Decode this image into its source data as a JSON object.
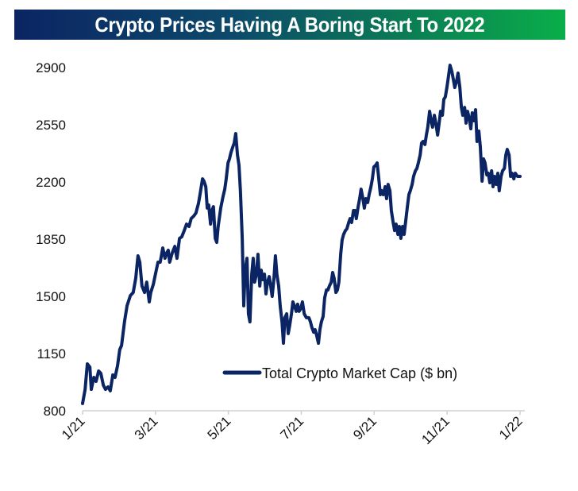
{
  "chart_data": {
    "type": "line",
    "title": "Crypto Prices Having A Boring Start To 2022",
    "xlabel": "",
    "ylabel": "",
    "ylim": [
      800,
      2900
    ],
    "yticks": [
      800,
      1150,
      1500,
      1850,
      2200,
      2550,
      2900
    ],
    "ytick_labels": [
      "800",
      "1150",
      "1500",
      "1850",
      "2200",
      "2550",
      "2900"
    ],
    "xlim_months": [
      0,
      12
    ],
    "xticks_months": [
      0,
      2,
      4,
      6,
      8,
      10,
      12
    ],
    "xtick_labels": [
      "1/21",
      "3/21",
      "5/21",
      "7/21",
      "9/21",
      "11/21",
      "1/22"
    ],
    "x_unit": "months since 1/21",
    "grid": false,
    "legend": {
      "placement": "bottom-center",
      "entries": [
        "Total Crypto Market Cap ($ bn)"
      ]
    },
    "series": [
      {
        "name": "Total Crypto Market Cap ($ bn)",
        "color": "#0b2463",
        "x": [
          0,
          0.07,
          0.13,
          0.2,
          0.24,
          0.31,
          0.37,
          0.44,
          0.5,
          0.57,
          0.63,
          0.7,
          0.76,
          0.83,
          0.89,
          0.96,
          1.02,
          1.07,
          1.15,
          1.22,
          1.31,
          1.39,
          1.46,
          1.52,
          1.57,
          1.63,
          1.7,
          1.76,
          1.83,
          1.87,
          1.94,
          2.0,
          2.07,
          2.13,
          2.2,
          2.26,
          2.31,
          2.35,
          2.39,
          2.46,
          2.53,
          2.59,
          2.66,
          2.72,
          2.79,
          2.85,
          2.92,
          2.98,
          3.05,
          3.11,
          3.18,
          3.22,
          3.29,
          3.33,
          3.38,
          3.42,
          3.46,
          3.51,
          3.55,
          3.59,
          3.64,
          3.68,
          3.72,
          3.79,
          3.85,
          3.9,
          3.94,
          3.99,
          4.03,
          4.07,
          4.12,
          4.16,
          4.2,
          4.25,
          4.29,
          4.33,
          4.38,
          4.42,
          4.46,
          4.51,
          4.55,
          4.59,
          4.64,
          4.68,
          4.72,
          4.77,
          4.81,
          4.86,
          4.9,
          4.94,
          4.99,
          5.03,
          5.07,
          5.12,
          5.16,
          5.2,
          5.25,
          5.29,
          5.33,
          5.38,
          5.42,
          5.47,
          5.51,
          5.55,
          5.6,
          5.64,
          5.68,
          5.73,
          5.77,
          5.81,
          5.86,
          5.9,
          5.94,
          5.99,
          6.03,
          6.08,
          6.14,
          6.21,
          6.25,
          6.29,
          6.34,
          6.38,
          6.42,
          6.47,
          6.51,
          6.55,
          6.6,
          6.64,
          6.69,
          6.73,
          6.77,
          6.82,
          6.86,
          6.9,
          6.95,
          6.99,
          7.03,
          7.08,
          7.12,
          7.16,
          7.21,
          7.25,
          7.3,
          7.34,
          7.38,
          7.43,
          7.47,
          7.51,
          7.56,
          7.6,
          7.64,
          7.69,
          7.73,
          7.77,
          7.82,
          7.86,
          7.91,
          7.95,
          7.99,
          8.04,
          8.08,
          8.12,
          8.17,
          8.21,
          8.25,
          8.3,
          8.34,
          8.38,
          8.43,
          8.47,
          8.52,
          8.56,
          8.6,
          8.65,
          8.69,
          8.73,
          8.78,
          8.82,
          8.86,
          8.91,
          8.95,
          8.99,
          9.04,
          9.08,
          9.13,
          9.17,
          9.21,
          9.26,
          9.3,
          9.34,
          9.39,
          9.43,
          9.47,
          9.52,
          9.56,
          9.6,
          9.65,
          9.69,
          9.74,
          9.78,
          9.82,
          9.87,
          9.91,
          9.95,
          10.0,
          10.04,
          10.08,
          10.13,
          10.17,
          10.21,
          10.26,
          10.3,
          10.35,
          10.39,
          10.43,
          10.48,
          10.52,
          10.56,
          10.61,
          10.65,
          10.69,
          10.74,
          10.78,
          10.82,
          10.87,
          10.91,
          10.96,
          11.0,
          11.04,
          11.09,
          11.13,
          11.17,
          11.22,
          11.26,
          11.3,
          11.35,
          11.39,
          11.43,
          11.48,
          11.52,
          11.57,
          11.61,
          11.65,
          11.7,
          11.74,
          11.78,
          11.83,
          11.87,
          11.93,
          12.0
        ],
        "values": [
          844,
          931,
          1087,
          1067,
          931,
          1004,
          980,
          1043,
          1029,
          956,
          931,
          946,
          922,
          1019,
          1004,
          1077,
          1174,
          1199,
          1344,
          1442,
          1505,
          1524,
          1612,
          1748,
          1709,
          1563,
          1524,
          1587,
          1466,
          1524,
          1573,
          1636,
          1709,
          1709,
          1796,
          1733,
          1767,
          1782,
          1709,
          1767,
          1806,
          1733,
          1855,
          1864,
          1903,
          1942,
          1928,
          1976,
          1991,
          2010,
          2069,
          2122,
          2219,
          2205,
          2171,
          2040,
          2059,
          1942,
          2025,
          2049,
          1855,
          1830,
          1928,
          2040,
          2108,
          2156,
          2219,
          2316,
          2341,
          2380,
          2414,
          2438,
          2496,
          2365,
          2302,
          2146,
          1855,
          1442,
          1660,
          1733,
          1393,
          1344,
          1636,
          1733,
          1587,
          1636,
          1757,
          1563,
          1660,
          1602,
          1636,
          1515,
          1587,
          1621,
          1563,
          1500,
          1612,
          1748,
          1636,
          1563,
          1442,
          1344,
          1213,
          1369,
          1393,
          1272,
          1320,
          1393,
          1466,
          1442,
          1408,
          1452,
          1408,
          1427,
          1466,
          1393,
          1369,
          1369,
          1344,
          1310,
          1281,
          1296,
          1262,
          1213,
          1296,
          1344,
          1378,
          1490,
          1539,
          1539,
          1563,
          1587,
          1646,
          1612,
          1524,
          1539,
          1587,
          1757,
          1845,
          1879,
          1903,
          1913,
          1952,
          1976,
          1952,
          2025,
          2025,
          1976,
          2049,
          2098,
          2156,
          2098,
          2040,
          2098,
          2074,
          2122,
          2171,
          2219,
          2292,
          2302,
          2316,
          2234,
          2122,
          2146,
          2122,
          2171,
          2098,
          2185,
          2146,
          2025,
          1952,
          1903,
          1942,
          1879,
          1928,
          1855,
          1928,
          1879,
          1952,
          2049,
          2122,
          2146,
          2185,
          2234,
          2268,
          2283,
          2316,
          2365,
          2438,
          2448,
          2429,
          2487,
          2535,
          2632,
          2574,
          2535,
          2608,
          2560,
          2487,
          2560,
          2632,
          2608,
          2705,
          2720,
          2788,
          2851,
          2914,
          2876,
          2827,
          2778,
          2817,
          2866,
          2778,
          2656,
          2608,
          2656,
          2560,
          2632,
          2584,
          2525,
          2623,
          2574,
          2642,
          2448,
          2511,
          2414,
          2205,
          2341,
          2316,
          2243,
          2253,
          2195,
          2268,
          2171,
          2234,
          2185,
          2253,
          2146,
          2234,
          2268,
          2283,
          2365,
          2399,
          2365,
          2234,
          2253,
          2219,
          2253,
          2234,
          2234
        ]
      }
    ]
  }
}
